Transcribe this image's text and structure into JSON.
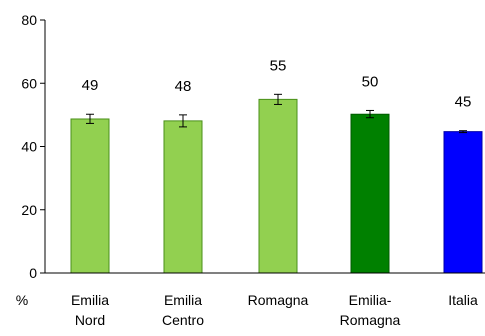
{
  "chart_data": {
    "type": "bar",
    "title": "",
    "xlabel": "",
    "ylabel": "%",
    "ylim": [
      0,
      80
    ],
    "yticks": [
      0,
      20,
      40,
      60,
      80
    ],
    "grid": false,
    "legend": "none",
    "categories": [
      [
        "Emilia",
        "Nord"
      ],
      [
        "Emilia",
        "Centro"
      ],
      [
        "Romagna"
      ],
      [
        "Emilia-",
        "Romagna"
      ],
      [
        "Italia"
      ]
    ],
    "values": [
      49,
      48,
      55,
      50,
      45
    ],
    "data_labels": [
      "49",
      "48",
      "55",
      "50",
      "45"
    ],
    "plotted_values": [
      48.7,
      48.1,
      54.9,
      50.2,
      44.7
    ],
    "error_bars": [
      [
        47.3,
        50.2
      ],
      [
        46.2,
        50.0
      ],
      [
        53.3,
        56.5
      ],
      [
        49.1,
        51.4
      ],
      [
        44.4,
        45.0
      ]
    ],
    "colors": {
      "bar_fills": [
        "#92d050",
        "#92d050",
        "#92d050",
        "#008000",
        "#0000ff"
      ],
      "bar_strokes": [
        "#4a8f1a",
        "#4a8f1a",
        "#4a8f1a",
        "#005a00",
        "#0000aa"
      ],
      "axis": "#000000"
    }
  }
}
